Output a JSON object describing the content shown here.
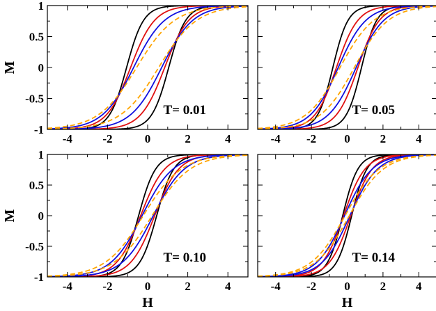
{
  "chart_data": [
    {
      "type": "line",
      "title": "",
      "annotation": "T= 0.01",
      "xlabel": "",
      "ylabel": "M",
      "xlim": [
        -5,
        5
      ],
      "ylim": [
        -1,
        1
      ],
      "xticks": [
        -4,
        -2,
        0,
        2,
        4
      ],
      "xtick_labels": [
        "-4",
        "-2",
        "0",
        "2",
        "4"
      ],
      "yticks": [
        -1,
        -0.5,
        0,
        0.5,
        1
      ],
      "ytick_labels": [
        "-1",
        "-0.5",
        "0",
        "0.5",
        "1"
      ],
      "grid": false,
      "series": [
        {
          "color": "#000000",
          "style": "solid",
          "coercive_field": 1.05,
          "half_width": 0.85
        },
        {
          "color": "#e01010",
          "style": "solid",
          "coercive_field": 0.85,
          "half_width": 1.2
        },
        {
          "color": "#1010e0",
          "style": "solid",
          "coercive_field": 0.7,
          "half_width": 1.55
        },
        {
          "color": "#ffa500",
          "style": "dashed",
          "coercive_field": 0.55,
          "half_width": 1.9
        }
      ]
    },
    {
      "type": "line",
      "title": "",
      "annotation": "T= 0.05",
      "xlabel": "",
      "ylabel": "",
      "xlim": [
        -5,
        5
      ],
      "ylim": [
        -1,
        1
      ],
      "xticks": [
        -4,
        -2,
        0,
        2,
        4
      ],
      "xtick_labels": [
        "-4",
        "-2",
        "0",
        "2",
        "4"
      ],
      "yticks": [
        -1,
        -0.5,
        0,
        0.5,
        1
      ],
      "grid": false,
      "series": [
        {
          "color": "#000000",
          "style": "solid",
          "coercive_field": 0.8,
          "half_width": 0.85
        },
        {
          "color": "#e01010",
          "style": "solid",
          "coercive_field": 0.6,
          "half_width": 1.2
        },
        {
          "color": "#1010e0",
          "style": "solid",
          "coercive_field": 0.5,
          "half_width": 1.55
        },
        {
          "color": "#ffa500",
          "style": "dashed",
          "coercive_field": 0.4,
          "half_width": 1.9
        }
      ]
    },
    {
      "type": "line",
      "title": "",
      "annotation": "T= 0.10",
      "xlabel": "H",
      "ylabel": "M",
      "xlim": [
        -5,
        5
      ],
      "ylim": [
        -1,
        1
      ],
      "xticks": [
        -4,
        -2,
        0,
        2,
        4
      ],
      "xtick_labels": [
        "-4",
        "-2",
        "0",
        "2",
        "4"
      ],
      "yticks": [
        -1,
        -0.5,
        0,
        0.5,
        1
      ],
      "ytick_labels": [
        "-1",
        "-0.5",
        "0",
        "0.5",
        "1"
      ],
      "grid": false,
      "series": [
        {
          "color": "#000000",
          "style": "solid",
          "coercive_field": 0.45,
          "half_width": 0.85
        },
        {
          "color": "#e01010",
          "style": "solid",
          "coercive_field": 0.35,
          "half_width": 1.2
        },
        {
          "color": "#1010e0",
          "style": "solid",
          "coercive_field": 0.28,
          "half_width": 1.55
        },
        {
          "color": "#ffa500",
          "style": "dashed",
          "coercive_field": 0.22,
          "half_width": 1.9
        }
      ]
    },
    {
      "type": "line",
      "title": "",
      "annotation": "T= 0.14",
      "xlabel": "H",
      "ylabel": "",
      "xlim": [
        -5,
        5
      ],
      "ylim": [
        -1,
        1
      ],
      "xticks": [
        -4,
        -2,
        0,
        2,
        4
      ],
      "xtick_labels": [
        "-4",
        "-2",
        "0",
        "2",
        "4"
      ],
      "yticks": [
        -1,
        -0.5,
        0,
        0.5,
        1
      ],
      "grid": false,
      "series": [
        {
          "color": "#000000",
          "style": "solid",
          "coercive_field": 0.25,
          "half_width": 0.85
        },
        {
          "color": "#e01010",
          "style": "solid",
          "coercive_field": 0.2,
          "half_width": 1.2
        },
        {
          "color": "#1010e0",
          "style": "solid",
          "coercive_field": 0.15,
          "half_width": 1.55
        },
        {
          "color": "#ffa500",
          "style": "dashed",
          "coercive_field": 0.12,
          "half_width": 1.9
        }
      ]
    }
  ]
}
